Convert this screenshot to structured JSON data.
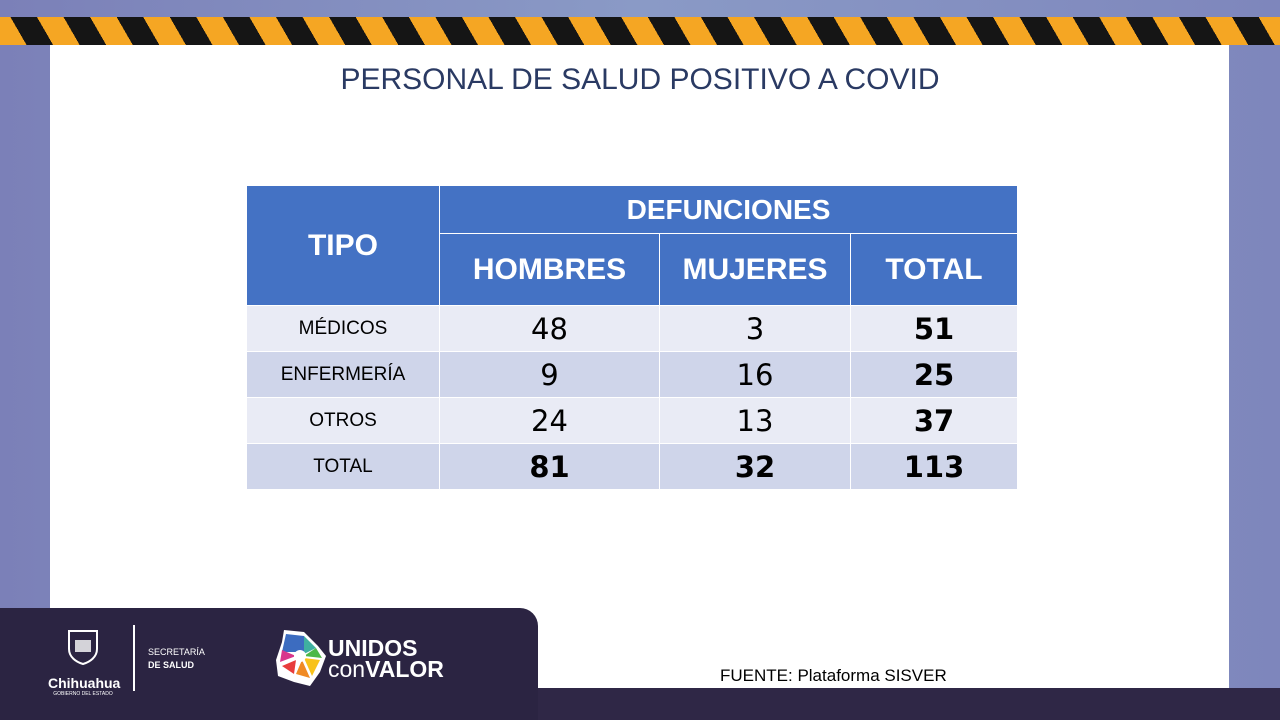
{
  "title": "PERSONAL DE SALUD POSITIVO A COVID",
  "table": {
    "tipo_header": "TIPO",
    "group_header": "DEFUNCIONES",
    "columns": [
      "HOMBRES",
      "MUJERES",
      "TOTAL"
    ],
    "rows": [
      {
        "label": "MÉDICOS",
        "values": [
          "48",
          "3",
          "51"
        ]
      },
      {
        "label": "ENFERMERÍA",
        "values": [
          "9",
          "16",
          "25"
        ]
      },
      {
        "label": "OTROS",
        "values": [
          "24",
          "13",
          "37"
        ]
      },
      {
        "label": "TOTAL",
        "values": [
          "81",
          "32",
          "113"
        ]
      }
    ]
  },
  "source": "FUENTE: Plataforma SISVER",
  "footer": {
    "state": "Chihuahua",
    "state_sub": "GOBIERNO DEL ESTADO",
    "sec1": "SECRETARÍA",
    "sec2": "DE SALUD",
    "campaign1": "UNIDOS",
    "campaign2a": "con",
    "campaign2b": "VALOR"
  },
  "colors": {
    "header": "#4472c4",
    "row_light": "#e9ebf5",
    "row_dark": "#cfd5ea",
    "title": "#2a3a63"
  }
}
